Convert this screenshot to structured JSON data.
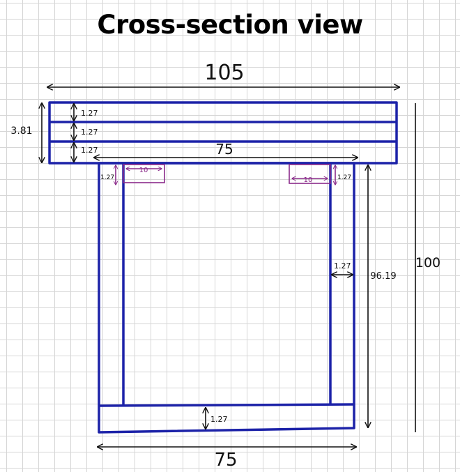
{
  "title": "Cross-section view",
  "colors": {
    "structure": "#1c22a8",
    "insert": "#8a2b8a",
    "dimension": "#111111"
  },
  "dimensions": {
    "overall_width": "105",
    "overall_height": "100",
    "top_stack_height": "3.81",
    "top_layer_1": "1.27",
    "top_layer_2": "1.27",
    "top_layer_3": "1.27",
    "inner_width": "75",
    "left_wall_top": "1.27",
    "right_wall_top": "1.27",
    "left_insert": "10",
    "right_insert": "10",
    "side_wall_thickness": "1.27",
    "side_height": "96.19",
    "bottom_thickness": "1.27",
    "bottom_width": "75"
  }
}
